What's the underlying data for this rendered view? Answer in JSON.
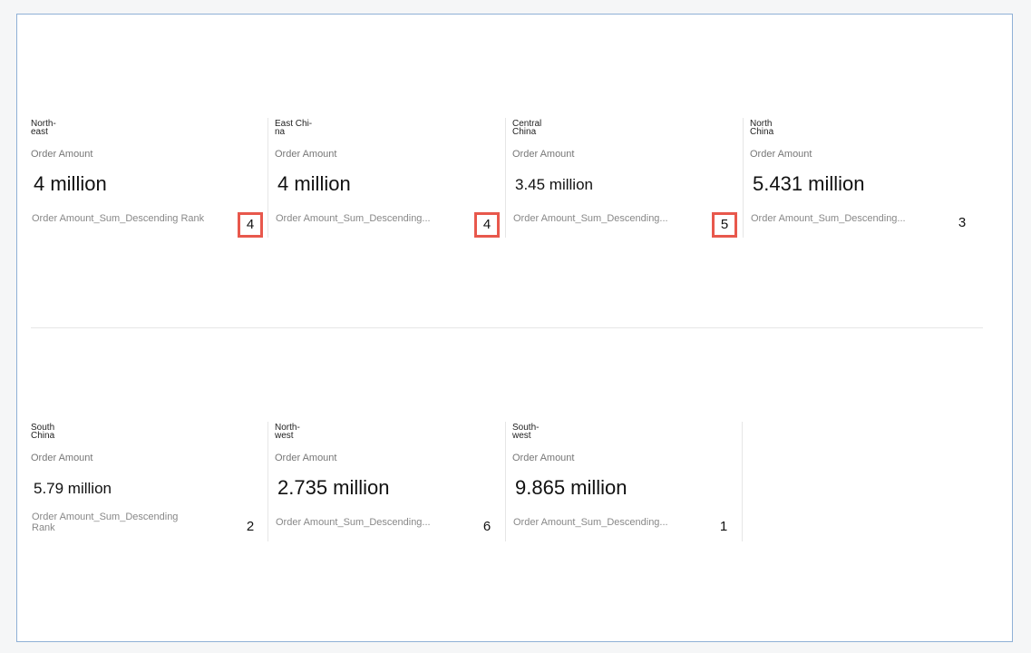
{
  "cards": [
    {
      "name_lines": [
        "North-",
        "east"
      ],
      "metric_label": "Order Amount",
      "value": "4 million",
      "rank_label_lines": [
        "Order Amount_Sum_Descending Rank"
      ],
      "rank": 4,
      "highlighted": true
    },
    {
      "name_lines": [
        "East Chi-",
        "na"
      ],
      "metric_label": "Order Amount",
      "value": "4 million",
      "rank_label_lines": [
        "Order Amount_Sum_Descending..."
      ],
      "rank": 4,
      "highlighted": true
    },
    {
      "name_lines": [
        "Central",
        "China"
      ],
      "metric_label": "Order Amount",
      "value": "3.45 million",
      "rank_label_lines": [
        "Order Amount_Sum_Descending..."
      ],
      "rank": 5,
      "highlighted": true
    },
    {
      "name_lines": [
        "North",
        "China"
      ],
      "metric_label": "Order Amount",
      "value": "5.431 million",
      "rank_label_lines": [
        "Order Amount_Sum_Descending..."
      ],
      "rank": 3,
      "highlighted": false
    },
    {
      "name_lines": [
        "South",
        "China"
      ],
      "metric_label": "Order Amount",
      "value": "5.79 million",
      "rank_label_lines": [
        "Order Amount_Sum_Descending",
        "Rank"
      ],
      "rank": 2,
      "highlighted": false
    },
    {
      "name_lines": [
        "North-",
        "west"
      ],
      "metric_label": "Order Amount",
      "value": "2.735 million",
      "rank_label_lines": [
        "Order Amount_Sum_Descending..."
      ],
      "rank": 6,
      "highlighted": false
    },
    {
      "name_lines": [
        "South-",
        "west"
      ],
      "metric_label": "Order Amount",
      "value": "9.865 million",
      "rank_label_lines": [
        "Order Amount_Sum_Descending..."
      ],
      "rank": 1,
      "highlighted": false
    }
  ]
}
